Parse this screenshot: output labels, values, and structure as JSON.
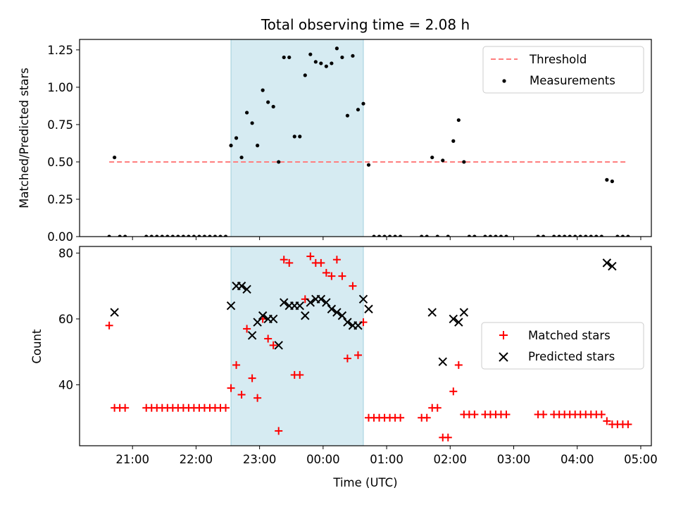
{
  "title": "Total observing time = 2.08 h",
  "chart_data": [
    {
      "type": "scatter",
      "ylabel": "Matched/Predicted stars",
      "ylim": [
        0,
        1.32
      ],
      "yticks": [
        "0.00",
        "0.25",
        "0.50",
        "0.75",
        "1.00",
        "1.25"
      ],
      "ytick_values": [
        0,
        0.25,
        0.5,
        0.75,
        1.0,
        1.25
      ],
      "legend_placement": "upper right",
      "legend": [
        "Threshold",
        "Measurements"
      ],
      "threshold": {
        "name": "Threshold",
        "y": 0.5,
        "x_start": "20:38",
        "x_end": "04:48",
        "color": "#ff7f7f"
      },
      "shaded_span": {
        "start": "22:33",
        "end": "00:38",
        "color": "#add8e6"
      },
      "series": [
        {
          "name": "Measurements",
          "color": "#000000",
          "points": [
            [
              "20:38",
              0
            ],
            [
              "20:43",
              0.53
            ],
            [
              "20:48",
              0
            ],
            [
              "20:53",
              0
            ],
            [
              "21:13",
              0
            ],
            [
              "21:18",
              0
            ],
            [
              "21:23",
              0
            ],
            [
              "21:28",
              0
            ],
            [
              "21:33",
              0
            ],
            [
              "21:38",
              0
            ],
            [
              "21:43",
              0
            ],
            [
              "21:48",
              0
            ],
            [
              "21:53",
              0
            ],
            [
              "21:58",
              0
            ],
            [
              "22:03",
              0
            ],
            [
              "22:08",
              0
            ],
            [
              "22:13",
              0
            ],
            [
              "22:18",
              0
            ],
            [
              "22:23",
              0
            ],
            [
              "22:28",
              0
            ],
            [
              "22:33",
              0.61
            ],
            [
              "22:38",
              0.66
            ],
            [
              "22:43",
              0.53
            ],
            [
              "22:48",
              0.83
            ],
            [
              "22:53",
              0.76
            ],
            [
              "22:58",
              0.61
            ],
            [
              "23:03",
              0.98
            ],
            [
              "23:08",
              0.9
            ],
            [
              "23:13",
              0.87
            ],
            [
              "23:18",
              0.5
            ],
            [
              "23:23",
              1.2
            ],
            [
              "23:28",
              1.2
            ],
            [
              "23:33",
              0.67
            ],
            [
              "23:38",
              0.67
            ],
            [
              "23:43",
              1.08
            ],
            [
              "23:48",
              1.22
            ],
            [
              "23:53",
              1.17
            ],
            [
              "23:58",
              1.16
            ],
            [
              "00:03",
              1.14
            ],
            [
              "00:08",
              1.16
            ],
            [
              "00:13",
              1.26
            ],
            [
              "00:18",
              1.2
            ],
            [
              "00:23",
              0.81
            ],
            [
              "00:28",
              1.21
            ],
            [
              "00:33",
              0.85
            ],
            [
              "00:38",
              0.89
            ],
            [
              "00:43",
              0.48
            ],
            [
              "00:48",
              0
            ],
            [
              "00:53",
              0
            ],
            [
              "00:58",
              0
            ],
            [
              "01:03",
              0
            ],
            [
              "01:08",
              0
            ],
            [
              "01:13",
              0
            ],
            [
              "01:33",
              0
            ],
            [
              "01:38",
              0
            ],
            [
              "01:43",
              0.53
            ],
            [
              "01:48",
              0
            ],
            [
              "01:53",
              0.51
            ],
            [
              "01:58",
              0
            ],
            [
              "02:03",
              0.64
            ],
            [
              "02:08",
              0.78
            ],
            [
              "02:13",
              0.5
            ],
            [
              "02:18",
              0
            ],
            [
              "02:23",
              0
            ],
            [
              "02:33",
              0
            ],
            [
              "02:38",
              0
            ],
            [
              "02:43",
              0
            ],
            [
              "02:48",
              0
            ],
            [
              "02:53",
              0
            ],
            [
              "03:23",
              0
            ],
            [
              "03:28",
              0
            ],
            [
              "03:38",
              0
            ],
            [
              "03:43",
              0
            ],
            [
              "03:48",
              0
            ],
            [
              "03:53",
              0
            ],
            [
              "03:58",
              0
            ],
            [
              "04:03",
              0
            ],
            [
              "04:08",
              0
            ],
            [
              "04:13",
              0
            ],
            [
              "04:18",
              0
            ],
            [
              "04:23",
              0
            ],
            [
              "04:28",
              0.38
            ],
            [
              "04:33",
              0.37
            ],
            [
              "04:38",
              0
            ],
            [
              "04:43",
              0
            ],
            [
              "04:48",
              0
            ]
          ]
        }
      ]
    },
    {
      "type": "scatter",
      "xlabel": "Time (UTC)",
      "ylabel": "Count",
      "ylim": [
        21.5,
        82
      ],
      "yticks": [
        "40",
        "60",
        "80"
      ],
      "ytick_values": [
        40,
        60,
        80
      ],
      "xticks": [
        "21:00",
        "22:00",
        "23:00",
        "00:00",
        "01:00",
        "02:00",
        "03:00",
        "04:00",
        "05:00"
      ],
      "legend_placement": "center right",
      "legend": [
        "Matched stars",
        "Predicted stars"
      ],
      "shaded_span": {
        "start": "22:33",
        "end": "00:38",
        "color": "#add8e6"
      },
      "series": [
        {
          "name": "Matched stars",
          "color": "#ff0000",
          "marker": "plus",
          "points": [
            [
              "20:38",
              58
            ],
            [
              "20:43",
              33
            ],
            [
              "20:48",
              33
            ],
            [
              "20:53",
              33
            ],
            [
              "21:13",
              33
            ],
            [
              "21:18",
              33
            ],
            [
              "21:23",
              33
            ],
            [
              "21:28",
              33
            ],
            [
              "21:33",
              33
            ],
            [
              "21:38",
              33
            ],
            [
              "21:43",
              33
            ],
            [
              "21:48",
              33
            ],
            [
              "21:53",
              33
            ],
            [
              "21:58",
              33
            ],
            [
              "22:03",
              33
            ],
            [
              "22:08",
              33
            ],
            [
              "22:13",
              33
            ],
            [
              "22:18",
              33
            ],
            [
              "22:23",
              33
            ],
            [
              "22:28",
              33
            ],
            [
              "22:33",
              39
            ],
            [
              "22:38",
              46
            ],
            [
              "22:43",
              37
            ],
            [
              "22:48",
              57
            ],
            [
              "22:53",
              42
            ],
            [
              "22:58",
              36
            ],
            [
              "23:03",
              60
            ],
            [
              "23:08",
              54
            ],
            [
              "23:13",
              52
            ],
            [
              "23:18",
              26
            ],
            [
              "23:23",
              78
            ],
            [
              "23:28",
              77
            ],
            [
              "23:33",
              43
            ],
            [
              "23:38",
              43
            ],
            [
              "23:43",
              66
            ],
            [
              "23:48",
              79
            ],
            [
              "23:53",
              77
            ],
            [
              "23:58",
              77
            ],
            [
              "00:03",
              74
            ],
            [
              "00:08",
              73
            ],
            [
              "00:13",
              78
            ],
            [
              "00:18",
              73
            ],
            [
              "00:23",
              48
            ],
            [
              "00:28",
              70
            ],
            [
              "00:33",
              49
            ],
            [
              "00:38",
              59
            ],
            [
              "00:43",
              30
            ],
            [
              "00:48",
              30
            ],
            [
              "00:53",
              30
            ],
            [
              "00:58",
              30
            ],
            [
              "01:03",
              30
            ],
            [
              "01:08",
              30
            ],
            [
              "01:13",
              30
            ],
            [
              "01:33",
              30
            ],
            [
              "01:38",
              30
            ],
            [
              "01:43",
              33
            ],
            [
              "01:48",
              33
            ],
            [
              "01:53",
              24
            ],
            [
              "01:58",
              24
            ],
            [
              "02:03",
              38
            ],
            [
              "02:08",
              46
            ],
            [
              "02:13",
              31
            ],
            [
              "02:18",
              31
            ],
            [
              "02:23",
              31
            ],
            [
              "02:33",
              31
            ],
            [
              "02:38",
              31
            ],
            [
              "02:43",
              31
            ],
            [
              "02:48",
              31
            ],
            [
              "02:53",
              31
            ],
            [
              "03:23",
              31
            ],
            [
              "03:28",
              31
            ],
            [
              "03:38",
              31
            ],
            [
              "03:43",
              31
            ],
            [
              "03:48",
              31
            ],
            [
              "03:53",
              31
            ],
            [
              "03:58",
              31
            ],
            [
              "04:03",
              31
            ],
            [
              "04:08",
              31
            ],
            [
              "04:13",
              31
            ],
            [
              "04:18",
              31
            ],
            [
              "04:23",
              31
            ],
            [
              "04:28",
              29
            ],
            [
              "04:33",
              28
            ],
            [
              "04:38",
              28
            ],
            [
              "04:43",
              28
            ],
            [
              "04:48",
              28
            ]
          ]
        },
        {
          "name": "Predicted stars",
          "color": "#000000",
          "marker": "x",
          "points": [
            [
              "20:43",
              62
            ],
            [
              "22:33",
              64
            ],
            [
              "22:38",
              70
            ],
            [
              "22:43",
              70
            ],
            [
              "22:48",
              69
            ],
            [
              "22:53",
              55
            ],
            [
              "22:58",
              59
            ],
            [
              "23:03",
              61
            ],
            [
              "23:08",
              60
            ],
            [
              "23:13",
              60
            ],
            [
              "23:18",
              52
            ],
            [
              "23:23",
              65
            ],
            [
              "23:28",
              64
            ],
            [
              "23:33",
              64
            ],
            [
              "23:38",
              64
            ],
            [
              "23:43",
              61
            ],
            [
              "23:48",
              65
            ],
            [
              "23:53",
              66
            ],
            [
              "23:58",
              66
            ],
            [
              "00:03",
              65
            ],
            [
              "00:08",
              63
            ],
            [
              "00:13",
              62
            ],
            [
              "00:18",
              61
            ],
            [
              "00:23",
              59
            ],
            [
              "00:28",
              58
            ],
            [
              "00:33",
              58
            ],
            [
              "00:38",
              66
            ],
            [
              "00:43",
              63
            ],
            [
              "01:43",
              62
            ],
            [
              "01:53",
              47
            ],
            [
              "02:03",
              60
            ],
            [
              "02:08",
              59
            ],
            [
              "02:13",
              62
            ],
            [
              "04:28",
              77
            ],
            [
              "04:33",
              76
            ]
          ]
        }
      ]
    }
  ]
}
